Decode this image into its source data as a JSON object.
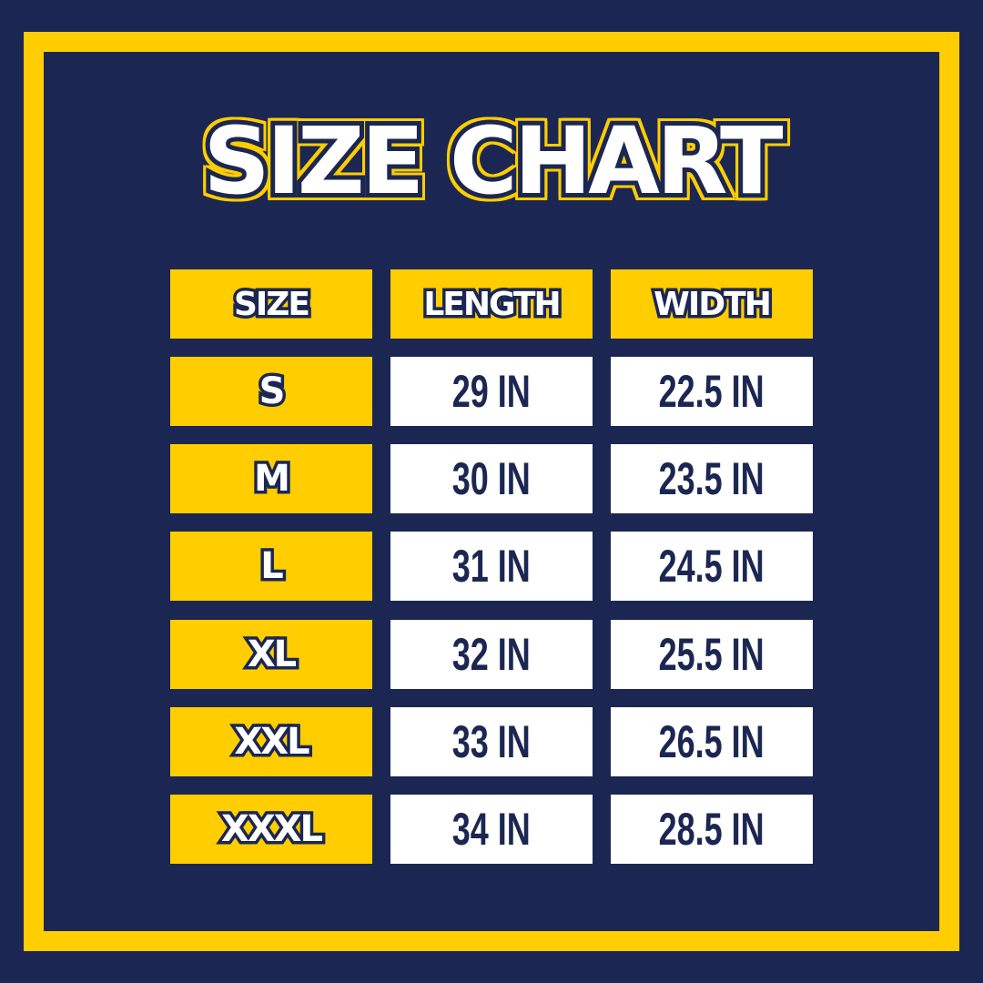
{
  "title": "SIZE CHART",
  "colors": {
    "background": "#1b2752",
    "accent": "#ffcd00",
    "cell": "#ffffff"
  },
  "table": {
    "headers": [
      "SIZE",
      "LENGTH",
      "WIDTH"
    ],
    "rows": [
      {
        "size": "S",
        "length": "29 IN",
        "width": "22.5 IN"
      },
      {
        "size": "M",
        "length": "30 IN",
        "width": "23.5 IN"
      },
      {
        "size": "L",
        "length": "31 IN",
        "width": "24.5 IN"
      },
      {
        "size": "XL",
        "length": "32 IN",
        "width": "25.5 IN"
      },
      {
        "size": "XXL",
        "length": "33 IN",
        "width": "26.5 IN"
      },
      {
        "size": "XXXL",
        "length": "34 IN",
        "width": "28.5 IN"
      }
    ]
  }
}
